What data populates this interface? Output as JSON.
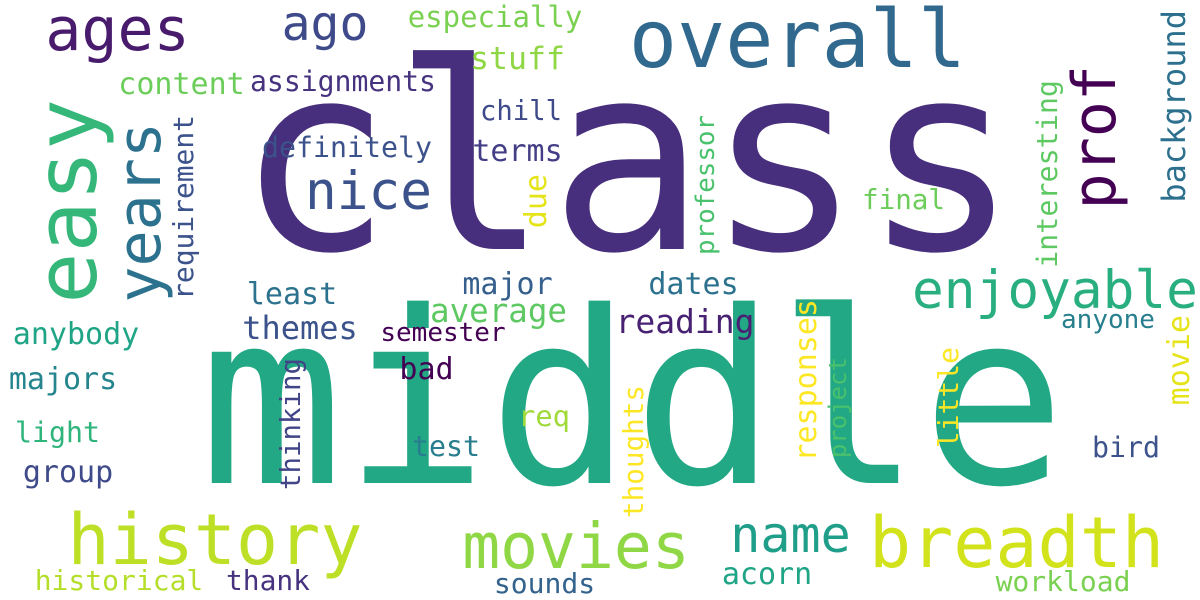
{
  "words": [
    {
      "text": "class",
      "color": "#472f7d"
    },
    {
      "text": "middle",
      "color": "#22a884"
    },
    {
      "text": "ages",
      "color": "#481b6d"
    },
    {
      "text": "ago",
      "color": "#3e4a89"
    },
    {
      "text": "overall",
      "color": "#31688e"
    },
    {
      "text": "prof",
      "color": "#440154"
    },
    {
      "text": "easy",
      "color": "#35b779"
    },
    {
      "text": "years",
      "color": "#2c728e"
    },
    {
      "text": "nice",
      "color": "#3b528b"
    },
    {
      "text": "enjoyable",
      "color": "#29af7f"
    },
    {
      "text": "history",
      "color": "#bddf26"
    },
    {
      "text": "movies",
      "color": "#8fd744"
    },
    {
      "text": "breadth",
      "color": "#d2e21b"
    },
    {
      "text": "name",
      "color": "#1f9e89"
    },
    {
      "text": "especially",
      "color": "#7ad151"
    },
    {
      "text": "stuff",
      "color": "#8fd744"
    },
    {
      "text": "content",
      "color": "#6ccd5a"
    },
    {
      "text": "assignments",
      "color": "#46327e"
    },
    {
      "text": "chill",
      "color": "#3e4a89"
    },
    {
      "text": "definitely",
      "color": "#3b528b"
    },
    {
      "text": "terms",
      "color": "#433e85"
    },
    {
      "text": "requirement",
      "color": "#3b528b"
    },
    {
      "text": "due",
      "color": "#e5e419"
    },
    {
      "text": "professor",
      "color": "#4ac16d"
    },
    {
      "text": "final",
      "color": "#6ccd5a"
    },
    {
      "text": "interesting",
      "color": "#5ec962"
    },
    {
      "text": "background",
      "color": "#2d708e"
    },
    {
      "text": "major",
      "color": "#355f8d"
    },
    {
      "text": "dates",
      "color": "#2c728e"
    },
    {
      "text": "least",
      "color": "#2c728e"
    },
    {
      "text": "average",
      "color": "#5ec962"
    },
    {
      "text": "themes",
      "color": "#3b528b"
    },
    {
      "text": "semester",
      "color": "#440154"
    },
    {
      "text": "reading",
      "color": "#482173"
    },
    {
      "text": "anyone",
      "color": "#277f8e"
    },
    {
      "text": "anybody",
      "color": "#20a486"
    },
    {
      "text": "majors",
      "color": "#25858e"
    },
    {
      "text": "responses",
      "color": "#fde725"
    },
    {
      "text": "project",
      "color": "#4ac16d"
    },
    {
      "text": "little",
      "color": "#fde725"
    },
    {
      "text": "movie",
      "color": "#e5e419"
    },
    {
      "text": "bad",
      "color": "#440154"
    },
    {
      "text": "thinking",
      "color": "#414487"
    },
    {
      "text": "req",
      "color": "#a0da39"
    },
    {
      "text": "thoughts",
      "color": "#fde725"
    },
    {
      "text": "light",
      "color": "#2fb47c"
    },
    {
      "text": "test",
      "color": "#287d8e"
    },
    {
      "text": "bird",
      "color": "#3b528b"
    },
    {
      "text": "group",
      "color": "#3e4a89"
    },
    {
      "text": "historical",
      "color": "#b5de2b"
    },
    {
      "text": "thank",
      "color": "#46327e"
    },
    {
      "text": "sounds",
      "color": "#33638d"
    },
    {
      "text": "acorn",
      "color": "#20a486"
    },
    {
      "text": "workload",
      "color": "#7ad151"
    }
  ]
}
